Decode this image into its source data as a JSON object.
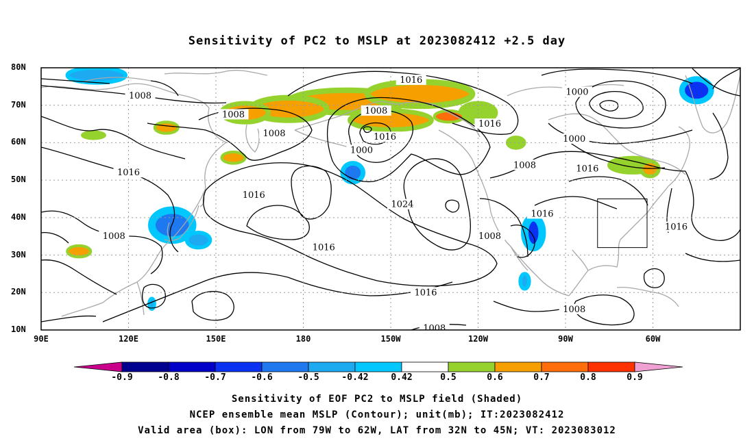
{
  "title": "Sensitivity of PC2 to MSLP at 2023082412 +2.5 day",
  "lat_labels": [
    "80N",
    "70N",
    "60N",
    "50N",
    "40N",
    "30N",
    "20N",
    "10N"
  ],
  "lon_labels": [
    "90E",
    "120E",
    "150E",
    "180",
    "150W",
    "120W",
    "90W",
    "60W"
  ],
  "contour_labels": [
    {
      "text": "1016",
      "lon": -143,
      "lat": 76.7
    },
    {
      "text": "1008",
      "lon": 124,
      "lat": 72.5
    },
    {
      "text": "1008",
      "lon": -155,
      "lat": 68.5
    },
    {
      "text": "1008",
      "lon": 156,
      "lat": 67.5
    },
    {
      "text": "1008",
      "lon": 170,
      "lat": 62.5
    },
    {
      "text": "1000",
      "lon": -86,
      "lat": 73.5
    },
    {
      "text": "1016",
      "lon": -116,
      "lat": 65
    },
    {
      "text": "1000",
      "lon": -160,
      "lat": 58
    },
    {
      "text": "1016",
      "lon": -152,
      "lat": 61.5
    },
    {
      "text": "1000",
      "lon": -87,
      "lat": 61
    },
    {
      "text": "1016",
      "lon": -82.5,
      "lat": 53
    },
    {
      "text": "1008",
      "lon": -104,
      "lat": 54
    },
    {
      "text": "1016",
      "lon": 120,
      "lat": 52
    },
    {
      "text": "1016",
      "lon": 163,
      "lat": 46
    },
    {
      "text": "1024",
      "lon": -146,
      "lat": 43.5
    },
    {
      "text": "1016",
      "lon": -98,
      "lat": 41
    },
    {
      "text": "1016",
      "lon": -52,
      "lat": 37.5
    },
    {
      "text": "1008",
      "lon": 115,
      "lat": 35
    },
    {
      "text": "1016",
      "lon": -173,
      "lat": 32
    },
    {
      "text": "1008",
      "lon": -116,
      "lat": 35
    },
    {
      "text": "1016",
      "lon": -138,
      "lat": 20
    },
    {
      "text": "1008",
      "lon": -87,
      "lat": 15.5
    },
    {
      "text": "1008",
      "lon": -135,
      "lat": 10.5
    }
  ],
  "valid_box": {
    "lon_from": -79,
    "lon_to": -62,
    "lat_from": 32,
    "lat_to": 45
  },
  "colorbar": {
    "labels": [
      "-0.9",
      "-0.8",
      "-0.7",
      "-0.6",
      "-0.5",
      "-0.42",
      "0.42",
      "0.5",
      "0.6",
      "0.7",
      "0.8",
      "0.9"
    ],
    "colors": [
      "#000090",
      "#0000c8",
      "#0a32f0",
      "#1e78f0",
      "#1eaaf0",
      "#00c8ff",
      "#ffffff",
      "#96d22d",
      "#f5a000",
      "#ff6e0a",
      "#ff3200",
      "#ff0000"
    ],
    "end_low": "#c8008c",
    "end_high": "#f0a0d2"
  },
  "shaded_areas": [
    {
      "lon": -165,
      "lat": 71,
      "rx": 20,
      "ry": 3,
      "value": 0.6
    },
    {
      "lon": -140,
      "lat": 73,
      "rx": 18,
      "ry": 3.2,
      "value": 0.6
    },
    {
      "lon": 175,
      "lat": 69,
      "rx": 13,
      "ry": 3,
      "value": 0.6
    },
    {
      "lon": 160,
      "lat": 68,
      "rx": 8,
      "ry": 2.5,
      "value": 0.6
    },
    {
      "lon": -120,
      "lat": 68,
      "rx": 6,
      "ry": 2.5,
      "value": 0.5
    },
    {
      "lon": -150,
      "lat": 66,
      "rx": 14,
      "ry": 2.5,
      "value": 0.6
    },
    {
      "lon": -130,
      "lat": 67,
      "rx": 5,
      "ry": 1.5,
      "value": 0.7
    },
    {
      "lon": 133,
      "lat": 64,
      "rx": 4,
      "ry": 1.5,
      "value": 0.6
    },
    {
      "lon": 108,
      "lat": 62,
      "rx": 4,
      "ry": 1,
      "value": 0.5
    },
    {
      "lon": -107,
      "lat": 60,
      "rx": 3,
      "ry": 1.5,
      "value": 0.5
    },
    {
      "lon": 156,
      "lat": 56,
      "rx": 4,
      "ry": 1.5,
      "value": 0.6
    },
    {
      "lon": -67,
      "lat": 54,
      "rx": 8,
      "ry": 2,
      "value": 0.5
    },
    {
      "lon": -61,
      "lat": 53,
      "rx": 3,
      "ry": 2,
      "value": 0.6
    },
    {
      "lon": -163,
      "lat": 52,
      "rx": 3.5,
      "ry": 2.5,
      "value": -0.6
    },
    {
      "lon": 135,
      "lat": 38,
      "rx": 7,
      "ry": 4,
      "value": -0.6
    },
    {
      "lon": 144,
      "lat": 34,
      "rx": 4,
      "ry": 2,
      "value": -0.5
    },
    {
      "lon": -101,
      "lat": 36,
      "rx": 3,
      "ry": 4,
      "value": -0.7
    },
    {
      "lon": 103,
      "lat": 31,
      "rx": 4,
      "ry": 1.5,
      "value": 0.6
    },
    {
      "lon": -104,
      "lat": 23,
      "rx": 1.5,
      "ry": 2,
      "value": -0.5
    },
    {
      "lon": -45,
      "lat": 74,
      "rx": 5,
      "ry": 3,
      "value": -0.7
    },
    {
      "lon": 128,
      "lat": 17,
      "rx": 1,
      "ry": 1.5,
      "value": -0.5
    },
    {
      "lon": 109,
      "lat": 78,
      "rx": 10,
      "ry": 2,
      "value": -0.5
    }
  ],
  "caption": [
    "Sensitivity of EOF PC2 to MSLP field (Shaded)",
    "NCEP ensemble mean MSLP (Contour); unit(mb); IT:2023082412",
    "Valid area (box): LON from 79W to 62W, LAT from 32N to 45N; VT: 2023083012"
  ]
}
